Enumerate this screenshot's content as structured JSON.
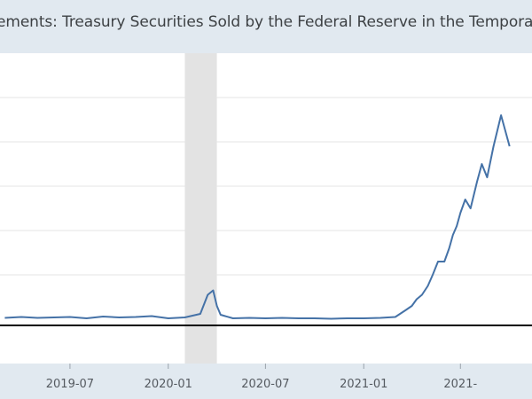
{
  "chart_data": {
    "type": "line",
    "title": "ements: Treasury Securities Sold by the Federal Reserve in the Temporary Open Mark",
    "xlabel": "",
    "ylabel": "",
    "x_tick_labels": [
      "2019-07",
      "2020-01",
      "2020-07",
      "2021-01",
      "2021-"
    ],
    "x_range": [
      "2019-02-20",
      "2021-11-12"
    ],
    "y_range": [
      -1,
      6
    ],
    "grid": true,
    "recession_shading": {
      "start": "2020-02",
      "end": "2020-04"
    },
    "series": [
      {
        "color": "#4572a7",
        "x": [
          "2019-03-01",
          "2019-04-01",
          "2019-05-01",
          "2019-06-01",
          "2019-07-01",
          "2019-08-01",
          "2019-09-01",
          "2019-10-01",
          "2019-11-01",
          "2019-12-01",
          "2020-01-01",
          "2020-02-01",
          "2020-03-01",
          "2020-03-15",
          "2020-03-25",
          "2020-04-01",
          "2020-04-08",
          "2020-05-01",
          "2020-06-01",
          "2020-07-01",
          "2020-08-01",
          "2020-09-01",
          "2020-10-01",
          "2020-11-01",
          "2020-12-01",
          "2021-01-01",
          "2021-02-01",
          "2021-03-01",
          "2021-03-20",
          "2021-04-01",
          "2021-04-10",
          "2021-04-20",
          "2021-05-01",
          "2021-05-10",
          "2021-05-20",
          "2021-06-01",
          "2021-06-10",
          "2021-06-17",
          "2021-06-24",
          "2021-07-01",
          "2021-07-10",
          "2021-07-20",
          "2021-08-01",
          "2021-08-10",
          "2021-08-20",
          "2021-09-01",
          "2021-09-15",
          "2021-10-01"
        ],
        "y": [
          0.03,
          0.05,
          0.03,
          0.04,
          0.05,
          0.02,
          0.06,
          0.04,
          0.05,
          0.07,
          0.02,
          0.04,
          0.12,
          0.55,
          0.65,
          0.3,
          0.1,
          0.02,
          0.03,
          0.02,
          0.03,
          0.02,
          0.02,
          0.01,
          0.02,
          0.02,
          0.03,
          0.05,
          0.2,
          0.3,
          0.45,
          0.55,
          0.75,
          1.0,
          1.3,
          1.3,
          1.6,
          1.9,
          2.1,
          2.4,
          2.7,
          2.5,
          3.1,
          3.5,
          3.2,
          3.9,
          4.6,
          3.9
        ]
      }
    ]
  }
}
